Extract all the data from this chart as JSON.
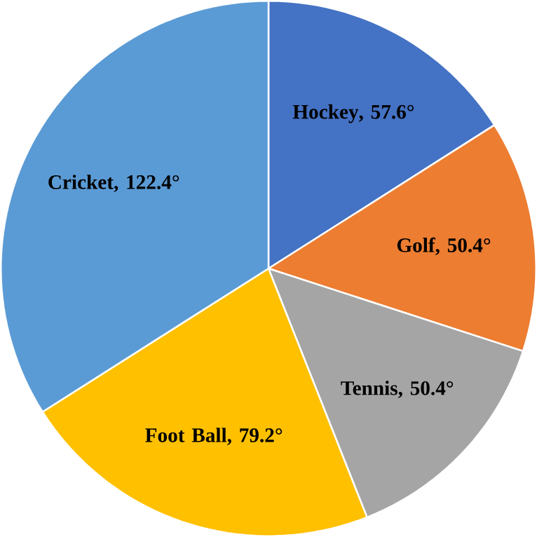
{
  "chart_data": {
    "type": "pie",
    "categories": [
      "Hockey",
      "Golf",
      "Tennis",
      "Foot Ball",
      "Cricket"
    ],
    "values": [
      57.6,
      50.4,
      50.4,
      79.2,
      122.4
    ],
    "value_labels": [
      ", 57.6°",
      ", 50.4°",
      ", 50.4°",
      ", 79.2°",
      ", 122.4°"
    ],
    "colors": [
      "#4472c4",
      "#ed7d31",
      "#a5a5a5",
      "#ffc000",
      "#5b9bd5"
    ]
  }
}
